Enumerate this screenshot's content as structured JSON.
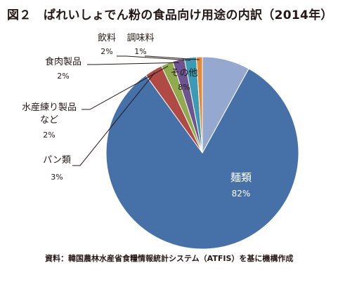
{
  "title": "図２　ぱれいしょでん粉の食品向け用途の内訳（2014年）",
  "source": "資料：韓国農林水産省食糧情報統計システム（ATFIS）を基に機構作成",
  "chart_data": {
    "type": "pie",
    "title": "図２　ぱれいしょでん粉の食品向け用途の内訳（2014年）",
    "unit": "%",
    "slices": [
      {
        "label": "その他",
        "value": 8,
        "value_label": "8%",
        "color": "#95A8D0"
      },
      {
        "label": "麺類",
        "value": 82,
        "value_label": "82%",
        "color": "#4670A8"
      },
      {
        "label": "パン類",
        "value": 3,
        "value_label": "3%",
        "color": "#B04A45"
      },
      {
        "label": "水産練り製品など",
        "value": 2,
        "value_label": "2%",
        "color": "#8FAB4E"
      },
      {
        "label": "食肉製品",
        "value": 2,
        "value_label": "2%",
        "color": "#6D5490"
      },
      {
        "label": "飲料",
        "value": 2,
        "value_label": "2%",
        "color": "#3B9BB5"
      },
      {
        "label": "調味料",
        "value": 1,
        "value_label": "1%",
        "color": "#E38A36"
      }
    ]
  }
}
